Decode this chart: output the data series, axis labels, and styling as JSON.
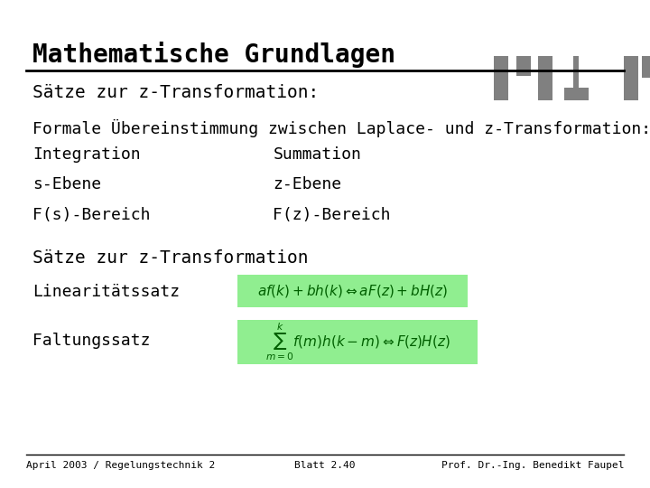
{
  "bg_color": "#ffffff",
  "title": "Mathematische Grundlagen",
  "title_fontsize": 20,
  "title_color": "#000000",
  "title_font": "monospace",
  "htw_color": "#808080",
  "line_color": "#000000",
  "subtitle": "Sätze zur z-Transformation:",
  "subtitle_fontsize": 14,
  "body_fontsize": 13,
  "body_font": "monospace",
  "formal_line": "Formale Übereinstimmung zwischen Laplace- und z-Transformation:",
  "col1_items": [
    "Integration",
    "s-Ebene",
    "F(s)-Bereich"
  ],
  "col2_items": [
    "Summation",
    "z-Ebene",
    "F(z)-Bereich"
  ],
  "section2_title": "Sätze zur z-Transformation",
  "linearitaet_label": "Linearitätssatz",
  "linearitaet_formula": "$af(k)+bh(k)\\Leftrightarrow aF(z)+bH(z)$",
  "faltung_label": "Faltungssatz",
  "faltung_formula": "$\\sum_{m=0}^{k}f(m)h(k-m)\\Leftrightarrow F(z)H(z)$",
  "formula_bg": "#90EE90",
  "footer_left": "April 2003 / Regelungstechnik 2",
  "footer_center": "Blatt 2.40",
  "footer_right": "Prof. Dr.-Ing. Benedikt Faupel",
  "footer_fontsize": 8,
  "footer_color": "#000000"
}
